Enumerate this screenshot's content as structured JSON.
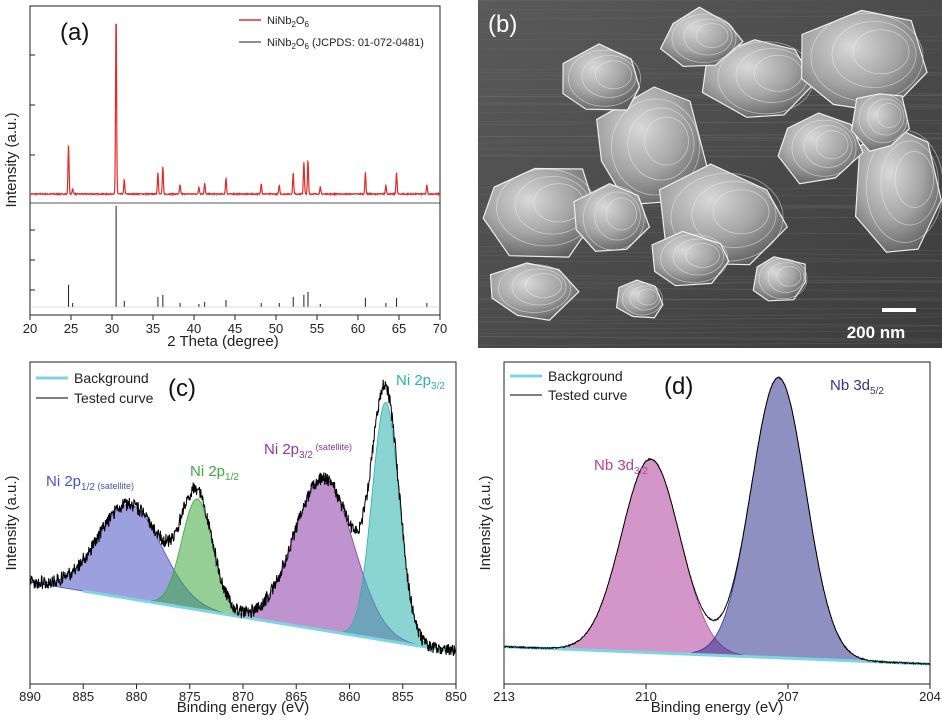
{
  "colors": {
    "xrd_measured": "#e32b2b",
    "reference": "#222222",
    "background_line": "#7fd4e3",
    "tested_curve": "#000000",
    "ni_2p12_sat": "#4a52c4",
    "ni_2p12": "#3ea83e",
    "ni_2p32_sat": "#8a3aa6",
    "ni_2p32": "#2ab3ad",
    "nb_3d32": "#b0409a",
    "nb_3d52": "#32358f",
    "sem_bg": "#4a4a4a"
  },
  "sem_panel": {
    "label": "(b)",
    "scale_bar": "200 nm"
  },
  "chart_data": [
    {
      "id": "a",
      "panel_label": "(a)",
      "type": "line",
      "xlabel": "2 Theta (degree)",
      "ylabel": "Intensity (a.u.)",
      "xlim": [
        20,
        70
      ],
      "xticks": [
        20,
        25,
        30,
        35,
        40,
        45,
        50,
        55,
        60,
        65,
        70
      ],
      "legend": [
        {
          "name": "NiNb",
          "sub": "2",
          "name2": "O",
          "sub2": "6",
          "rest": ""
        },
        {
          "name": "NiNb",
          "sub": "2",
          "name2": "O",
          "sub2": "6",
          "rest": " (JCPDS: 01-072-0481)"
        }
      ],
      "measured_peaks": [
        {
          "x": 24.7,
          "h": 0.28
        },
        {
          "x": 25.2,
          "h": 0.03
        },
        {
          "x": 30.5,
          "h": 1.0
        },
        {
          "x": 31.5,
          "h": 0.08
        },
        {
          "x": 35.6,
          "h": 0.12
        },
        {
          "x": 36.2,
          "h": 0.15
        },
        {
          "x": 38.3,
          "h": 0.05
        },
        {
          "x": 40.6,
          "h": 0.04
        },
        {
          "x": 41.3,
          "h": 0.06
        },
        {
          "x": 43.9,
          "h": 0.09
        },
        {
          "x": 48.2,
          "h": 0.06
        },
        {
          "x": 50.4,
          "h": 0.05
        },
        {
          "x": 52.1,
          "h": 0.12
        },
        {
          "x": 53.4,
          "h": 0.18
        },
        {
          "x": 53.9,
          "h": 0.19
        },
        {
          "x": 55.4,
          "h": 0.04
        },
        {
          "x": 60.9,
          "h": 0.12
        },
        {
          "x": 63.4,
          "h": 0.05
        },
        {
          "x": 64.7,
          "h": 0.12
        },
        {
          "x": 68.4,
          "h": 0.05
        }
      ],
      "reference_lines": [
        {
          "x": 24.7,
          "h": 0.22
        },
        {
          "x": 25.2,
          "h": 0.04
        },
        {
          "x": 30.5,
          "h": 1.0
        },
        {
          "x": 31.5,
          "h": 0.06
        },
        {
          "x": 35.6,
          "h": 0.1
        },
        {
          "x": 36.2,
          "h": 0.12
        },
        {
          "x": 38.3,
          "h": 0.04
        },
        {
          "x": 40.6,
          "h": 0.03
        },
        {
          "x": 41.3,
          "h": 0.05
        },
        {
          "x": 43.9,
          "h": 0.07
        },
        {
          "x": 48.2,
          "h": 0.04
        },
        {
          "x": 50.4,
          "h": 0.04
        },
        {
          "x": 52.1,
          "h": 0.1
        },
        {
          "x": 53.4,
          "h": 0.12
        },
        {
          "x": 53.9,
          "h": 0.15
        },
        {
          "x": 55.4,
          "h": 0.03
        },
        {
          "x": 60.9,
          "h": 0.09
        },
        {
          "x": 63.4,
          "h": 0.04
        },
        {
          "x": 64.7,
          "h": 0.09
        },
        {
          "x": 68.4,
          "h": 0.04
        }
      ]
    },
    {
      "id": "c",
      "panel_label": "(c)",
      "type": "area",
      "xlabel": "Binding energy (eV)",
      "ylabel": "Intensity (a.u.)",
      "xlim": [
        890,
        850
      ],
      "xticks": [
        890,
        885,
        880,
        875,
        870,
        865,
        860,
        855,
        850
      ],
      "legend": [
        "Background",
        "Tested curve"
      ],
      "background": {
        "x1": 885,
        "y1": 0.22,
        "x2": 850,
        "y2": 0.0
      },
      "components": [
        {
          "main": "Ni 2p",
          "sub": "1/2",
          "sup": " (satellite)",
          "center": 880.6,
          "height": 0.34,
          "fwhm": 7.0,
          "color_key": "ni_2p12_sat"
        },
        {
          "main": "Ni 2p",
          "sub": "1/2",
          "sup": "",
          "center": 874.3,
          "height": 0.4,
          "fwhm": 3.4,
          "color_key": "ni_2p12"
        },
        {
          "main": "Ni 2p",
          "sub": "3/2",
          "sup": " (satellite)",
          "center": 862.4,
          "height": 0.55,
          "fwhm": 6.5,
          "color_key": "ni_2p32_sat"
        },
        {
          "main": "Ni 2p",
          "sub": "3/2",
          "sup": "",
          "center": 856.6,
          "height": 0.86,
          "fwhm": 3.0,
          "color_key": "ni_2p32"
        }
      ]
    },
    {
      "id": "d",
      "panel_label": "(d)",
      "type": "area",
      "xlabel": "Binding energy (eV)",
      "ylabel": "Intensity (a.u.)",
      "xlim": [
        213,
        204
      ],
      "xticks": [
        213,
        210,
        207,
        204
      ],
      "legend": [
        "Background",
        "Tested curve"
      ],
      "background": {
        "x1": 213,
        "y1": 0.06,
        "x2": 204,
        "y2": 0.0
      },
      "components": [
        {
          "main": "Nb 3d",
          "sub": "3/2",
          "sup": "",
          "center": 209.9,
          "height": 0.67,
          "fwhm": 1.45,
          "color_key": "nb_3d32"
        },
        {
          "main": "Nb 3d",
          "sub": "5/2",
          "sup": "",
          "center": 207.2,
          "height": 0.97,
          "fwhm": 1.35,
          "color_key": "nb_3d52"
        }
      ]
    }
  ]
}
